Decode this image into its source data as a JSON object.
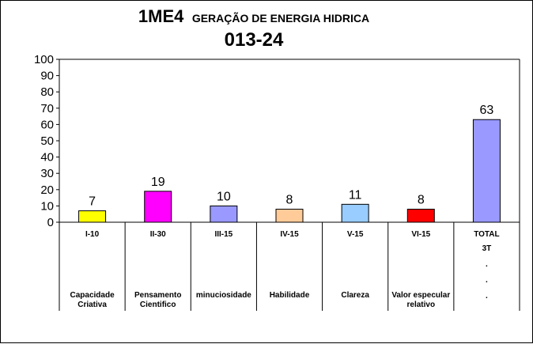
{
  "chart_data": {
    "type": "bar",
    "title_main": "1ME4",
    "title_sub": "GERAÇÃO DE ENERGIA HIDRICA",
    "title_line2": "013-24",
    "ylim": [
      0,
      100
    ],
    "yticks": [
      0,
      10,
      20,
      30,
      40,
      50,
      60,
      70,
      80,
      90,
      100
    ],
    "grid": false,
    "legend": "none",
    "categories": [
      {
        "code": "I-10",
        "desc": [
          "Capacidade",
          "Criativa"
        ],
        "value": 7,
        "color": "#ffff00"
      },
      {
        "code": "II-30",
        "desc": [
          "Pensamento",
          "Cientifico"
        ],
        "value": 19,
        "color": "#ff00ff"
      },
      {
        "code": "III-15",
        "desc": [
          "minuciosidade"
        ],
        "value": 10,
        "color": "#9999ff"
      },
      {
        "code": "IV-15",
        "desc": [
          "Habilidade"
        ],
        "value": 8,
        "color": "#ffcc99"
      },
      {
        "code": "V-15",
        "desc": [
          "Clareza"
        ],
        "value": 11,
        "color": "#99ccff"
      },
      {
        "code": "VI-15",
        "desc": [
          "Valor especular",
          "relativo"
        ],
        "value": 8,
        "color": "#ff0000"
      },
      {
        "code": "TOTAL",
        "desc": [
          "3T",
          ".",
          ".",
          "."
        ],
        "value": 63,
        "color": "#9999ff"
      }
    ]
  }
}
